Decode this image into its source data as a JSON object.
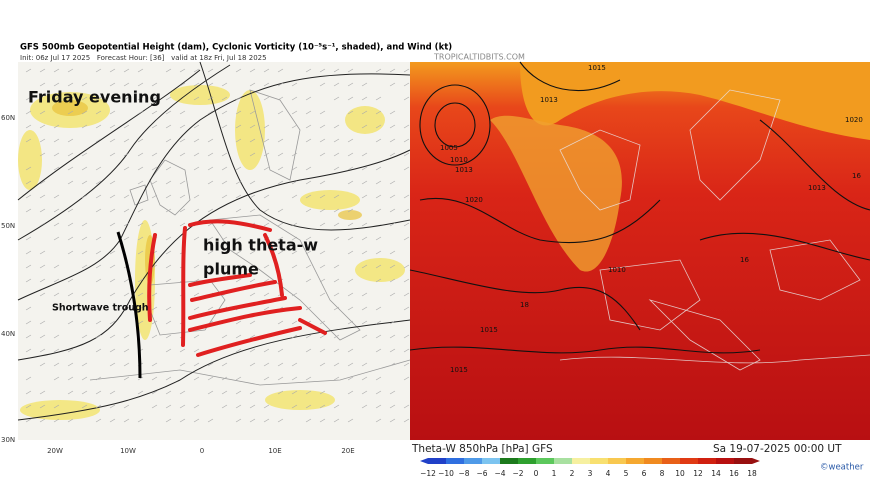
{
  "left_map": {
    "title": "GFS 500mb Geopotential Height (dam), Cyclonic Vorticity (10⁻⁵s⁻¹, shaded), and Wind (kt)",
    "subtitle": "Init: 06z Jul 17 2025   Forecast Hour: [36]   valid at 18z Fri, Jul 18 2025",
    "watermark": "TROPICALTIDBITS.COM",
    "annotations": {
      "time": "Friday evening",
      "plume": [
        "high theta-w",
        "plume"
      ],
      "trough": "Shortwave trough"
    },
    "lat_labels": [
      "60N",
      "50N",
      "40N",
      "30N"
    ],
    "lon_labels": [
      "20W",
      "10W",
      "0",
      "10E",
      "20E"
    ]
  },
  "right_map": {
    "title": "Theta-W 850hPa [hPa] GFS",
    "valid": "Sa 19-07-2025 00:00 UT",
    "credit": "©weather",
    "contour_labels": [
      "1015",
      "1013",
      "1005",
      "1010",
      "1013",
      "1020",
      "1010",
      "1015",
      "1020",
      "1013",
      "16",
      "18",
      "16",
      "1015"
    ],
    "colorbar": {
      "labels": [
        "−12",
        "−10",
        "−8",
        "−6",
        "−4",
        "−2",
        "0",
        "1",
        "2",
        "3",
        "4",
        "5",
        "6",
        "8",
        "10",
        "12",
        "14",
        "16",
        "18"
      ]
    }
  }
}
